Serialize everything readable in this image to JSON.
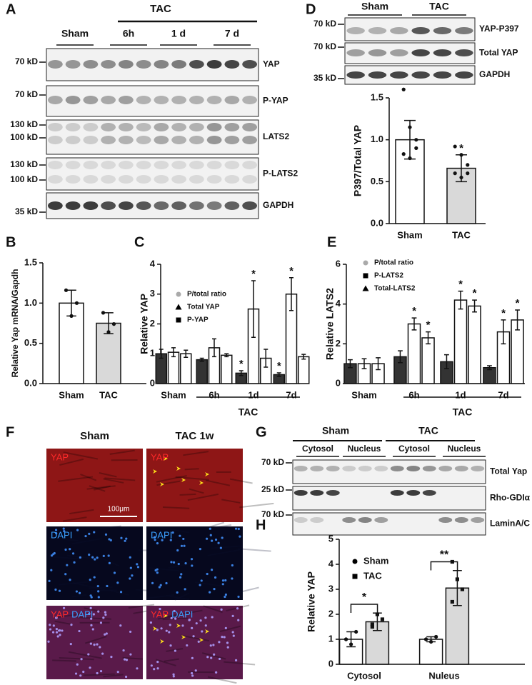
{
  "panels": [
    "A",
    "B",
    "C",
    "D",
    "E",
    "F",
    "G",
    "H"
  ],
  "blot_A": {
    "group_label": "TAC",
    "lanes": [
      "Sham",
      "6h",
      "1 d",
      "7 d"
    ],
    "rows": [
      {
        "name": "YAP",
        "markers": [
          "70 kD"
        ]
      },
      {
        "name": "P-YAP",
        "markers": [
          "70 kD"
        ]
      },
      {
        "name": "LATS2",
        "markers": [
          "130 kD",
          "100 kD"
        ]
      },
      {
        "name": "P-LATS2",
        "markers": [
          "130 kD",
          "100 kD"
        ]
      },
      {
        "name": "GAPDH",
        "markers": [
          "35 kD"
        ]
      }
    ]
  },
  "blot_D": {
    "lanes": [
      "Sham",
      "TAC"
    ],
    "rows": [
      {
        "name": "YAP-P397",
        "markers": [
          "70 kD"
        ]
      },
      {
        "name": "Total YAP",
        "markers": [
          "70 kD"
        ]
      },
      {
        "name": "GAPDH",
        "markers": [
          "35 kD"
        ]
      }
    ]
  },
  "blot_G": {
    "groups": [
      "Sham",
      "TAC"
    ],
    "lanes": [
      "Cytosol",
      "Nucleus",
      "Cytosol",
      "Nucleus"
    ],
    "rows": [
      {
        "name": "Total Yap",
        "markers": [
          "70 kD"
        ]
      },
      {
        "name": "Rho-GDIα",
        "markers": [
          "25 kD"
        ]
      },
      {
        "name": "LaminA/C",
        "markers": [
          "70 kD"
        ]
      }
    ]
  },
  "images_F": {
    "columns": [
      "Sham",
      "TAC 1w"
    ],
    "channels": [
      [
        "YAP"
      ],
      [
        "DAPI"
      ],
      [
        "YAP",
        "DAPI"
      ]
    ],
    "scale_bar": "100μm"
  },
  "chart_data": [
    {
      "type": "bar",
      "ylabel": "Relative Yap mRNA/Gapdh",
      "categories": [
        "Sham",
        "TAC"
      ],
      "values": [
        1.0,
        0.75
      ],
      "errors": [
        0.16,
        0.13
      ],
      "colors": [
        "#ffffff",
        "#d9d9d9"
      ],
      "points": [
        [
          1.16,
          0.84,
          1.0
        ],
        [
          0.88,
          0.64,
          0.74
        ]
      ],
      "ylim": [
        0,
        1.5
      ],
      "yticks": [
        {
          "value": 0,
          "label": "0.0"
        },
        {
          "value": 0.5,
          "label": "0.5"
        },
        {
          "value": 1,
          "label": "1.0"
        },
        {
          "value": 1.5,
          "label": "1.5"
        }
      ]
    },
    {
      "type": "grouped-bar",
      "ylabel": "Relative YAP",
      "group_label": "TAC",
      "categories": [
        "Sham",
        "6h",
        "1d",
        "7d"
      ],
      "ylim": [
        0,
        4
      ],
      "yticks": [
        0,
        1,
        2,
        3,
        4
      ],
      "series": [
        {
          "name": "P/total ratio",
          "color": "#333333",
          "marker": "circle",
          "marker_color": "#aaaaaa",
          "values": [
            1.0,
            0.8,
            0.35,
            0.3
          ],
          "errors": [
            0.15,
            0.05,
            0.08,
            0.06
          ],
          "stars": [
            null,
            null,
            "*",
            "*"
          ]
        },
        {
          "name": "Total YAP",
          "color": "#ffffff",
          "marker": "triangle",
          "marker_color": "#000000",
          "values": [
            1.05,
            1.2,
            2.5,
            3.0
          ],
          "errors": [
            0.15,
            0.3,
            0.95,
            0.55
          ],
          "stars": [
            null,
            null,
            "*",
            "*"
          ]
        },
        {
          "name": "P-YAP",
          "color": "#ffffff",
          "marker": "square",
          "marker_color": "#000000",
          "values": [
            1.0,
            0.95,
            0.85,
            0.9
          ],
          "errors": [
            0.12,
            0.05,
            0.3,
            0.08
          ],
          "stars": [
            null,
            null,
            null,
            null
          ]
        }
      ]
    },
    {
      "type": "bar",
      "ylabel": "P397/Total YAP",
      "categories": [
        "Sham",
        "TAC"
      ],
      "values": [
        1.0,
        0.66
      ],
      "errors": [
        0.23,
        0.16
      ],
      "colors": [
        "#ffffff",
        "#d9d9d9"
      ],
      "points": [
        [
          1.6,
          1.15,
          1.0,
          0.83,
          0.78,
          0.9
        ],
        [
          0.92,
          0.82,
          0.7,
          0.6,
          0.55,
          0.6
        ]
      ],
      "stars": [
        null,
        "*"
      ],
      "ylim": [
        0,
        1.5
      ],
      "yticks": [
        {
          "value": 0,
          "label": "0.0"
        },
        {
          "value": 0.5,
          "label": "0.5"
        },
        {
          "value": 1,
          "label": "1.0"
        },
        {
          "value": 1.5,
          "label": "1.5"
        }
      ]
    },
    {
      "type": "grouped-bar",
      "ylabel": "Relative LATS2",
      "group_label": "TAC",
      "categories": [
        "Sham",
        "6h",
        "1d",
        "7d"
      ],
      "ylim": [
        0,
        6
      ],
      "yticks": [
        0,
        2,
        4,
        6
      ],
      "series": [
        {
          "name": "P/total ratio",
          "color": "#333333",
          "marker": "circle",
          "marker_color": "#aaaaaa",
          "values": [
            1.0,
            1.35,
            1.1,
            0.8
          ],
          "errors": [
            0.2,
            0.3,
            0.35,
            0.1
          ],
          "stars": [
            null,
            null,
            null,
            null
          ]
        },
        {
          "name": "P-LATS2",
          "color": "#ffffff",
          "marker": "square",
          "marker_color": "#000000",
          "values": [
            1.0,
            3.0,
            4.2,
            2.6
          ],
          "errors": [
            0.25,
            0.3,
            0.45,
            0.6
          ],
          "stars": [
            null,
            "*",
            "*",
            "*"
          ]
        },
        {
          "name": "Total-LATS2",
          "color": "#ffffff",
          "marker": "triangle",
          "marker_color": "#000000",
          "values": [
            1.0,
            2.3,
            3.9,
            3.2
          ],
          "errors": [
            0.3,
            0.3,
            0.3,
            0.5
          ],
          "stars": [
            null,
            "*",
            "*",
            "*"
          ]
        }
      ]
    },
    {
      "type": "grouped-bar",
      "ylabel": "Relative YAP",
      "categories": [
        "Cytosol",
        "Nuleus"
      ],
      "brackets": [
        "*",
        "**"
      ],
      "ylim": [
        0,
        5
      ],
      "yticks": [
        0,
        1,
        2,
        3,
        4,
        5
      ],
      "series": [
        {
          "name": "Sham",
          "color": "#ffffff",
          "marker": "circle",
          "marker_color": "#000000",
          "values": [
            1.0,
            1.0
          ],
          "errors": [
            0.3,
            0.1
          ],
          "points": [
            [
              1.0,
              0.8,
              1.3,
              1.0
            ],
            [
              1.0,
              0.9,
              1.1,
              1.0
            ]
          ]
        },
        {
          "name": "TAC",
          "color": "#d9d9d9",
          "marker": "square",
          "marker_color": "#000000",
          "values": [
            1.7,
            3.05
          ],
          "errors": [
            0.35,
            0.7
          ],
          "points": [
            [
              1.5,
              2.0,
              1.8,
              1.6
            ],
            [
              2.5,
              3.4,
              3.0,
              4.1
            ]
          ]
        }
      ]
    }
  ]
}
